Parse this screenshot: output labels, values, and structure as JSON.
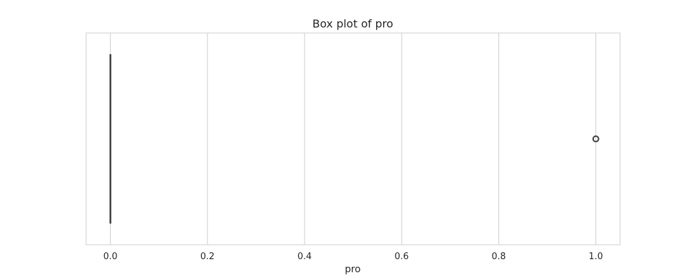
{
  "chart_data": {
    "type": "box",
    "title": "Box plot of pro",
    "xlabel": "pro",
    "ylabel": "",
    "orientation": "horizontal",
    "xlim": [
      -0.05,
      1.05
    ],
    "xticks": [
      0.0,
      0.2,
      0.4,
      0.6,
      0.8,
      1.0
    ],
    "xtick_labels": [
      "0.0",
      "0.2",
      "0.4",
      "0.6",
      "0.8",
      "1.0"
    ],
    "grid": true,
    "series": [
      {
        "min": 0.0,
        "q1": 0.0,
        "median": 0.0,
        "q3": 0.0,
        "max": 0.0,
        "outliers": [
          1.0
        ]
      }
    ],
    "colors": {
      "box": "#3d3d3d",
      "grid": "#cccccc",
      "frame": "#cccccc",
      "text": "#262626"
    }
  }
}
